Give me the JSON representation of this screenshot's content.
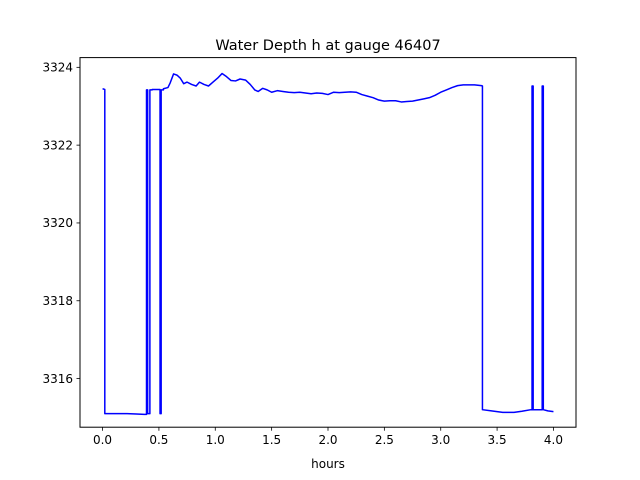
{
  "chart_data": {
    "type": "line",
    "title": "Water Depth h at gauge 46407",
    "xlabel": "hours",
    "ylabel": "",
    "xlim": [
      -0.2,
      4.2
    ],
    "ylim": [
      3314.75,
      3324.25
    ],
    "x_ticks": [
      0.0,
      0.5,
      1.0,
      1.5,
      2.0,
      2.5,
      3.0,
      3.5,
      4.0
    ],
    "x_tick_labels": [
      "0.0",
      "0.5",
      "1.0",
      "1.5",
      "2.0",
      "2.5",
      "3.0",
      "3.5",
      "4.0"
    ],
    "y_ticks": [
      3316,
      3318,
      3320,
      3322,
      3324
    ],
    "y_tick_labels": [
      "3316",
      "3318",
      "3320",
      "3322",
      "3324"
    ],
    "grid": false,
    "series": [
      {
        "color": "#0000ff",
        "x": [
          0.0,
          0.02,
          0.02,
          0.1,
          0.2,
          0.3,
          0.37,
          0.39,
          0.39,
          0.4,
          0.4,
          0.42,
          0.42,
          0.44,
          0.44,
          0.51,
          0.51,
          0.52,
          0.52,
          0.54,
          0.54,
          0.58,
          0.6,
          0.63,
          0.66,
          0.69,
          0.72,
          0.75,
          0.79,
          0.83,
          0.86,
          0.9,
          0.94,
          0.98,
          1.02,
          1.06,
          1.1,
          1.14,
          1.18,
          1.22,
          1.27,
          1.31,
          1.35,
          1.38,
          1.42,
          1.46,
          1.5,
          1.55,
          1.6,
          1.65,
          1.7,
          1.75,
          1.8,
          1.85,
          1.9,
          1.95,
          2.0,
          2.05,
          2.1,
          2.15,
          2.2,
          2.25,
          2.3,
          2.35,
          2.4,
          2.45,
          2.5,
          2.55,
          2.6,
          2.65,
          2.7,
          2.75,
          2.8,
          2.85,
          2.9,
          2.95,
          3.0,
          3.05,
          3.1,
          3.15,
          3.2,
          3.25,
          3.3,
          3.36,
          3.37,
          3.37,
          3.45,
          3.55,
          3.65,
          3.72,
          3.8,
          3.81,
          3.81,
          3.82,
          3.82,
          3.89,
          3.89,
          3.9,
          3.9,
          3.91,
          3.91,
          3.95,
          4.0
        ],
        "y": [
          3323.45,
          3323.43,
          3315.1,
          3315.1,
          3315.1,
          3315.09,
          3315.08,
          3315.08,
          3323.42,
          3323.42,
          3315.1,
          3315.1,
          3323.42,
          3323.42,
          3323.43,
          3323.43,
          3315.1,
          3315.1,
          3323.42,
          3323.42,
          3323.45,
          3323.48,
          3323.6,
          3323.83,
          3323.8,
          3323.72,
          3323.58,
          3323.62,
          3323.56,
          3323.52,
          3323.62,
          3323.56,
          3323.52,
          3323.62,
          3323.72,
          3323.84,
          3323.76,
          3323.66,
          3323.65,
          3323.7,
          3323.67,
          3323.56,
          3323.42,
          3323.38,
          3323.46,
          3323.42,
          3323.36,
          3323.4,
          3323.38,
          3323.36,
          3323.35,
          3323.36,
          3323.34,
          3323.32,
          3323.34,
          3323.33,
          3323.3,
          3323.36,
          3323.35,
          3323.36,
          3323.37,
          3323.36,
          3323.3,
          3323.26,
          3323.22,
          3323.16,
          3323.13,
          3323.14,
          3323.14,
          3323.11,
          3323.12,
          3323.13,
          3323.16,
          3323.19,
          3323.22,
          3323.28,
          3323.36,
          3323.42,
          3323.48,
          3323.53,
          3323.55,
          3323.55,
          3323.55,
          3323.53,
          3323.52,
          3315.2,
          3315.17,
          3315.13,
          3315.13,
          3315.16,
          3315.2,
          3315.2,
          3323.52,
          3323.52,
          3315.2,
          3315.2,
          3315.2,
          3315.2,
          3323.52,
          3323.52,
          3315.2,
          3315.17,
          3315.15
        ]
      }
    ]
  }
}
